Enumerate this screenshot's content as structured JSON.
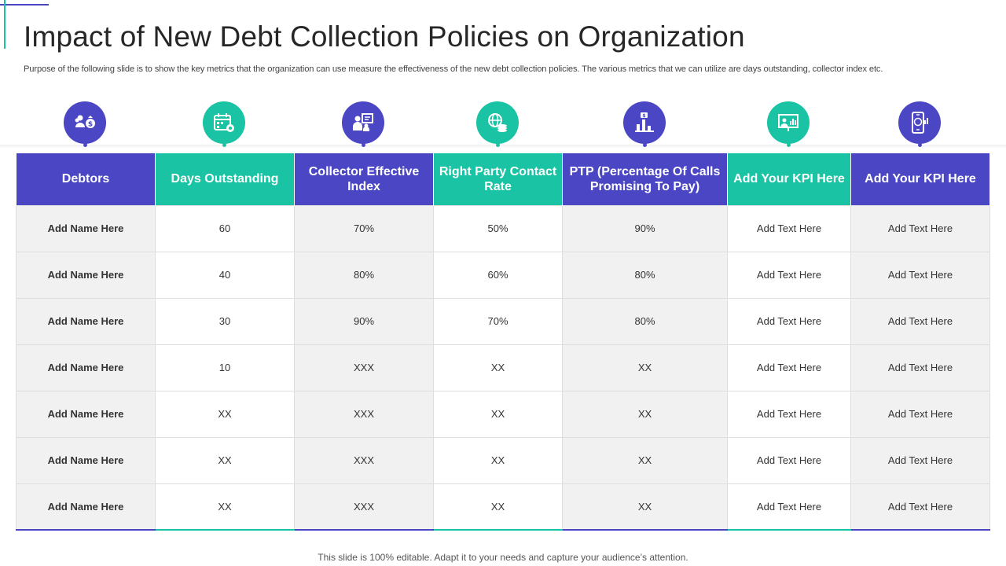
{
  "slide": {
    "title": "Impact of New Debt Collection Policies on Organization",
    "subtitle": "Purpose of the following slide is to show the key metrics that the organization can use measure the effectiveness of the new debt collection policies. The various metrics that we can utilize are days outstanding, collector index etc.",
    "footer": "This slide is 100% editable. Adapt it to your needs and capture your audience’s attention."
  },
  "colors": {
    "purple": "#4b46c4",
    "teal": "#19c3a3",
    "row_shade": "#f1f1f1"
  },
  "icons": [
    "debtor-money-icon",
    "calendar-gear-icon",
    "team-board-icon",
    "globe-coins-icon",
    "bar-chart-dollar-icon",
    "presentation-chart-icon",
    "mobile-payment-icon"
  ],
  "table": {
    "headers": [
      "Debtors",
      "Days Outstanding",
      "Collector Effective Index",
      "Right Party Contact Rate",
      "PTP (Percentage Of Calls Promising To Pay)",
      "Add Your KPI Here",
      "Add Your KPI Here"
    ],
    "header_colors": [
      "purple",
      "teal",
      "purple",
      "teal",
      "purple",
      "teal",
      "purple"
    ],
    "rows": [
      [
        "Add Name Here",
        "60",
        "70%",
        "50%",
        "90%",
        "Add Text Here",
        "Add Text Here"
      ],
      [
        "Add Name Here",
        "40",
        "80%",
        "60%",
        "80%",
        "Add Text Here",
        "Add Text Here"
      ],
      [
        "Add Name Here",
        "30",
        "90%",
        "70%",
        "80%",
        "Add Text Here",
        "Add Text Here"
      ],
      [
        "Add Name Here",
        "10",
        "XXX",
        "XX",
        "XX",
        "Add Text Here",
        "Add Text Here"
      ],
      [
        "Add Name Here",
        "XX",
        "XXX",
        "XX",
        "XX",
        "Add Text Here",
        "Add Text Here"
      ],
      [
        "Add Name Here",
        "XX",
        "XXX",
        "XX",
        "XX",
        "Add Text Here",
        "Add Text Here"
      ],
      [
        "Add Name Here",
        "XX",
        "XXX",
        "XX",
        "XX",
        "Add Text Here",
        "Add Text Here"
      ]
    ]
  }
}
